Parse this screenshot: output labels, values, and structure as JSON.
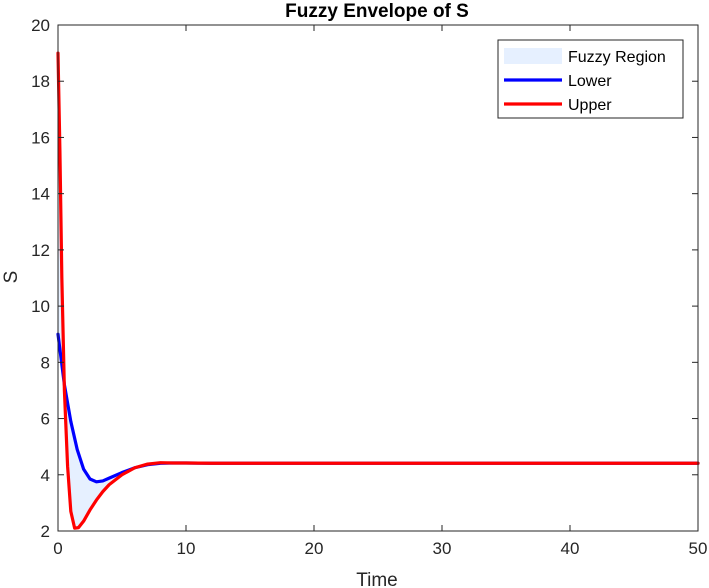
{
  "chart_data": {
    "type": "line",
    "title": "Fuzzy Envelope of S",
    "xlabel": "Time",
    "ylabel": "S",
    "xlim": [
      0,
      50
    ],
    "ylim": [
      2,
      20
    ],
    "xticks": [
      0,
      10,
      20,
      30,
      40,
      50
    ],
    "yticks": [
      2,
      4,
      6,
      8,
      10,
      12,
      14,
      16,
      18,
      20
    ],
    "grid": false,
    "legend_position": "top-right",
    "series": [
      {
        "name": "Fuzzy Region",
        "kind": "area",
        "color": "#E6F0FF",
        "values": "between Lower and Upper"
      },
      {
        "name": "Lower",
        "kind": "line",
        "color": "#0000FF",
        "x": [
          0,
          0.5,
          1,
          1.5,
          2,
          2.5,
          3,
          3.5,
          4,
          5,
          6,
          7,
          8,
          9,
          10,
          12,
          15,
          20,
          25,
          30,
          35,
          40,
          45,
          50
        ],
        "y": [
          9.0,
          7.2,
          5.9,
          4.9,
          4.2,
          3.85,
          3.75,
          3.78,
          3.88,
          4.08,
          4.25,
          4.36,
          4.41,
          4.42,
          4.42,
          4.41,
          4.41,
          4.41,
          4.41,
          4.41,
          4.41,
          4.41,
          4.41,
          4.41
        ]
      },
      {
        "name": "Upper",
        "kind": "line",
        "color": "#FF0000",
        "x": [
          0,
          0.15,
          0.3,
          0.5,
          0.75,
          1,
          1.3,
          1.6,
          2,
          2.5,
          3,
          3.5,
          4,
          5,
          6,
          7,
          8,
          9,
          10,
          12,
          15,
          20,
          25,
          30,
          35,
          40,
          45,
          50
        ],
        "y": [
          19.0,
          15.5,
          11.0,
          7.0,
          4.3,
          2.7,
          2.1,
          2.12,
          2.35,
          2.75,
          3.1,
          3.4,
          3.65,
          4.0,
          4.25,
          4.38,
          4.43,
          4.42,
          4.42,
          4.41,
          4.41,
          4.41,
          4.41,
          4.41,
          4.41,
          4.41,
          4.41,
          4.41
        ]
      }
    ]
  }
}
